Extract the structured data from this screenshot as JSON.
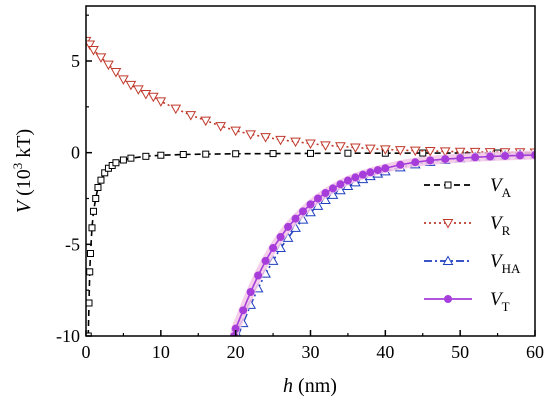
{
  "chart_data": {
    "type": "line",
    "title": "",
    "xlabel": {
      "var": "h",
      "unit": " (nm)"
    },
    "ylabel": {
      "var": "V",
      "unit_pre": " (10",
      "unit_sup": "3",
      "unit_post": " kT)"
    },
    "xlim": [
      0,
      60
    ],
    "ylim": [
      -10,
      8
    ],
    "xticks": [
      0,
      10,
      20,
      30,
      40,
      50,
      60
    ],
    "xtick_labels": [
      "0",
      "10",
      "20",
      "30",
      "40",
      "50",
      "60"
    ],
    "yticks": [
      -10,
      -5,
      0,
      5
    ],
    "ytick_labels": [
      "-10",
      "-5",
      "0",
      "5"
    ],
    "grid": false,
    "legend_position": "right",
    "series": [
      {
        "name": "V_A",
        "label_main": "V",
        "label_sub": "A",
        "color": "#000000",
        "line": "dashed",
        "marker": "square-open",
        "points": [
          [
            0.3,
            -10.0
          ],
          [
            0.4,
            -8.2
          ],
          [
            0.5,
            -6.5
          ],
          [
            0.6,
            -5.5
          ],
          [
            0.8,
            -4.1
          ],
          [
            1.0,
            -3.2
          ],
          [
            1.3,
            -2.5
          ],
          [
            1.6,
            -1.9
          ],
          [
            2.0,
            -1.5
          ],
          [
            2.5,
            -1.1
          ],
          [
            3.0,
            -0.85
          ],
          [
            3.5,
            -0.7
          ],
          [
            4.0,
            -0.55
          ],
          [
            5.0,
            -0.4
          ],
          [
            6.0,
            -0.3
          ],
          [
            8.0,
            -0.2
          ],
          [
            10.0,
            -0.14
          ],
          [
            13.0,
            -0.1
          ],
          [
            16.0,
            -0.08
          ],
          [
            20.0,
            -0.06
          ],
          [
            25.0,
            -0.05
          ],
          [
            30.0,
            -0.04
          ],
          [
            35.0,
            -0.03
          ],
          [
            40.0,
            -0.03
          ],
          [
            45.0,
            -0.02
          ],
          [
            50.0,
            -0.02
          ],
          [
            55.0,
            -0.02
          ],
          [
            60.0,
            -0.02
          ]
        ]
      },
      {
        "name": "V_R",
        "label_main": "V",
        "label_sub": "R",
        "color": "#c0392b",
        "line": "dotted",
        "marker": "triangle-down-open",
        "points": [
          [
            0.0,
            6.1
          ],
          [
            0.5,
            5.9
          ],
          [
            1.0,
            5.6
          ],
          [
            2.0,
            5.2
          ],
          [
            3.0,
            4.8
          ],
          [
            4.0,
            4.4
          ],
          [
            5.0,
            4.0
          ],
          [
            6.0,
            3.7
          ],
          [
            7.0,
            3.45
          ],
          [
            8.0,
            3.2
          ],
          [
            9.0,
            3.05
          ],
          [
            10.0,
            2.8
          ],
          [
            12.0,
            2.4
          ],
          [
            14.0,
            2.05
          ],
          [
            16.0,
            1.75
          ],
          [
            18.0,
            1.45
          ],
          [
            20.0,
            1.2
          ],
          [
            22.0,
            1.0
          ],
          [
            24.0,
            0.85
          ],
          [
            26.0,
            0.7
          ],
          [
            28.0,
            0.6
          ],
          [
            30.0,
            0.5
          ],
          [
            32.0,
            0.4
          ],
          [
            34.0,
            0.35
          ],
          [
            36.0,
            0.28
          ],
          [
            38.0,
            0.22
          ],
          [
            40.0,
            0.18
          ],
          [
            42.0,
            0.14
          ],
          [
            44.0,
            0.11
          ],
          [
            46.0,
            0.09
          ],
          [
            48.0,
            0.07
          ],
          [
            50.0,
            0.05
          ],
          [
            52.0,
            0.04
          ],
          [
            54.0,
            0.03
          ],
          [
            56.0,
            0.02
          ],
          [
            58.0,
            0.02
          ],
          [
            60.0,
            0.01
          ]
        ]
      },
      {
        "name": "V_HA",
        "label_main": "V",
        "label_sub": "HA",
        "color": "#1f3fbf",
        "line": "dashdot",
        "marker": "triangle-up-open",
        "points": [
          [
            20.3,
            -10.0
          ],
          [
            21.0,
            -9.3
          ],
          [
            22.0,
            -8.3
          ],
          [
            23.0,
            -7.4
          ],
          [
            24.0,
            -6.6
          ],
          [
            25.0,
            -5.9
          ],
          [
            26.0,
            -5.2
          ],
          [
            27.0,
            -4.65
          ],
          [
            28.0,
            -4.1
          ],
          [
            29.0,
            -3.65
          ],
          [
            30.0,
            -3.25
          ],
          [
            31.0,
            -2.9
          ],
          [
            32.0,
            -2.58
          ],
          [
            33.0,
            -2.3
          ],
          [
            34.0,
            -2.05
          ],
          [
            35.0,
            -1.82
          ],
          [
            36.0,
            -1.62
          ],
          [
            37.0,
            -1.44
          ],
          [
            38.0,
            -1.28
          ],
          [
            39.0,
            -1.14
          ],
          [
            40.0,
            -1.02
          ],
          [
            42.0,
            -0.8
          ],
          [
            44.0,
            -0.64
          ],
          [
            46.0,
            -0.5
          ],
          [
            48.0,
            -0.4
          ],
          [
            50.0,
            -0.32
          ],
          [
            52.0,
            -0.25
          ],
          [
            54.0,
            -0.2
          ],
          [
            56.0,
            -0.16
          ],
          [
            58.0,
            -0.12
          ],
          [
            60.0,
            -0.1
          ]
        ]
      },
      {
        "name": "V_T",
        "label_main": "V",
        "label_sub": "T",
        "color": "#a63ddb",
        "line": "solid",
        "marker": "circle-filled",
        "points": [
          [
            19.8,
            -10.0
          ],
          [
            20.0,
            -9.6
          ],
          [
            21.0,
            -8.6
          ],
          [
            22.0,
            -7.6
          ],
          [
            23.0,
            -6.7
          ],
          [
            24.0,
            -5.9
          ],
          [
            25.0,
            -5.2
          ],
          [
            26.0,
            -4.6
          ],
          [
            27.0,
            -4.05
          ],
          [
            28.0,
            -3.6
          ],
          [
            29.0,
            -3.2
          ],
          [
            30.0,
            -2.82
          ],
          [
            31.0,
            -2.5
          ],
          [
            32.0,
            -2.2
          ],
          [
            33.0,
            -1.95
          ],
          [
            34.0,
            -1.72
          ],
          [
            35.0,
            -1.52
          ],
          [
            36.0,
            -1.35
          ],
          [
            37.0,
            -1.2
          ],
          [
            38.0,
            -1.07
          ],
          [
            39.0,
            -0.95
          ],
          [
            40.0,
            -0.85
          ],
          [
            42.0,
            -0.66
          ],
          [
            44.0,
            -0.52
          ],
          [
            46.0,
            -0.42
          ],
          [
            48.0,
            -0.35
          ],
          [
            50.0,
            -0.3
          ],
          [
            52.0,
            -0.25
          ],
          [
            54.0,
            -0.21
          ],
          [
            56.0,
            -0.18
          ],
          [
            58.0,
            -0.15
          ],
          [
            60.0,
            -0.13
          ]
        ]
      }
    ]
  }
}
